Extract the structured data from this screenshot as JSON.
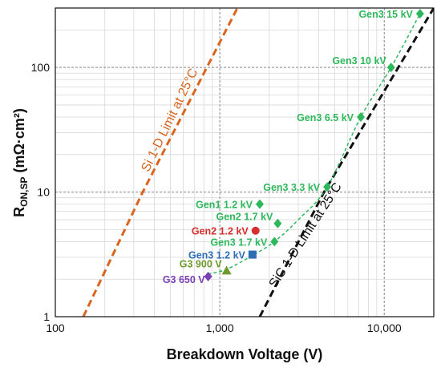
{
  "chart_data": {
    "type": "scatter",
    "xlabel": "Breakdown Voltage (V)",
    "ylabel_main": "R",
    "ylabel_sub": "ON,SP",
    "ylabel_unit": " (mΩ·cm²)",
    "xscale": "log",
    "yscale": "log",
    "xlim": [
      100,
      20000
    ],
    "ylim": [
      1,
      300
    ],
    "xticks": [
      {
        "value": 100,
        "label": "100"
      },
      {
        "value": 1000,
        "label": "1,000"
      },
      {
        "value": 10000,
        "label": "10,000"
      }
    ],
    "yticks": [
      {
        "value": 1,
        "label": "1"
      },
      {
        "value": 10,
        "label": "10"
      },
      {
        "value": 100,
        "label": "100"
      }
    ],
    "grid": true,
    "colors": {
      "gen3": "#2eb85c",
      "gen1": "#2eb85c",
      "gen2": "#2eb85c",
      "gen2_red": "#d62f2f",
      "gen3_blue": "#2f6db5",
      "g3_900": "#6f9a2e",
      "g3_650": "#7a3fb5",
      "si_limit": "#d9651e",
      "sic_limit": "#111111",
      "fit": "#2eb85c"
    },
    "points": [
      {
        "label": "Gen3 15 kV",
        "x": 16500,
        "y": 270,
        "marker": "diamond",
        "color": "#2eb85c",
        "label_pos": "left"
      },
      {
        "label": "Gen3 10 kV",
        "x": 11000,
        "y": 100,
        "marker": "diamond",
        "color": "#2eb85c",
        "label_pos": "left-up"
      },
      {
        "label": "Gen3 6.5 kV",
        "x": 7200,
        "y": 40,
        "marker": "diamond",
        "color": "#2eb85c",
        "label_pos": "left"
      },
      {
        "label": "Gen3 3.3 kV",
        "x": 4500,
        "y": 11,
        "marker": "diamond",
        "color": "#2eb85c",
        "label_pos": "left"
      },
      {
        "label": "Gen1 1.2 kV",
        "x": 1750,
        "y": 8,
        "marker": "diamond",
        "color": "#2eb85c",
        "label_pos": "left"
      },
      {
        "label": "Gen2 1.7 kV",
        "x": 2250,
        "y": 5.6,
        "marker": "diamond",
        "color": "#2eb85c",
        "label_pos": "left-up"
      },
      {
        "label": "Gen2 1.2 kV",
        "x": 1650,
        "y": 4.9,
        "marker": "circle",
        "color": "#d62f2f",
        "label_pos": "left"
      },
      {
        "label": "Gen3 1.7 kV",
        "x": 2150,
        "y": 4.0,
        "marker": "diamond",
        "color": "#2eb85c",
        "label_pos": "left"
      },
      {
        "label": "Gen3 1.2 kV",
        "x": 1580,
        "y": 3.15,
        "marker": "square",
        "color": "#2f6db5",
        "label_pos": "left"
      },
      {
        "label": "G3 900 V",
        "x": 1100,
        "y": 2.35,
        "marker": "triangle",
        "color": "#6f9a2e",
        "label_pos": "left-up"
      },
      {
        "label": "G3 650 V",
        "x": 850,
        "y": 2.1,
        "marker": "diamond",
        "color": "#7a3fb5",
        "label_pos": "left-down"
      }
    ],
    "fit_curve": {
      "x": [
        850,
        1100,
        1580,
        2150,
        3000,
        4500,
        7200,
        11000,
        16500
      ],
      "y": [
        2.2,
        2.4,
        3.1,
        4.0,
        6.0,
        11,
        40,
        100,
        270
      ]
    },
    "lines": [
      {
        "label": "Si 1-D Limit at 25°C",
        "x": [
          148,
          340,
          1280
        ],
        "y": [
          1,
          10,
          300
        ],
        "color": "#d9651e"
      },
      {
        "label": "SiC 1-D Limit at 25°C",
        "x": [
          1750,
          4300,
          20000
        ],
        "y": [
          1,
          10,
          300
        ],
        "color": "#111111"
      }
    ]
  }
}
